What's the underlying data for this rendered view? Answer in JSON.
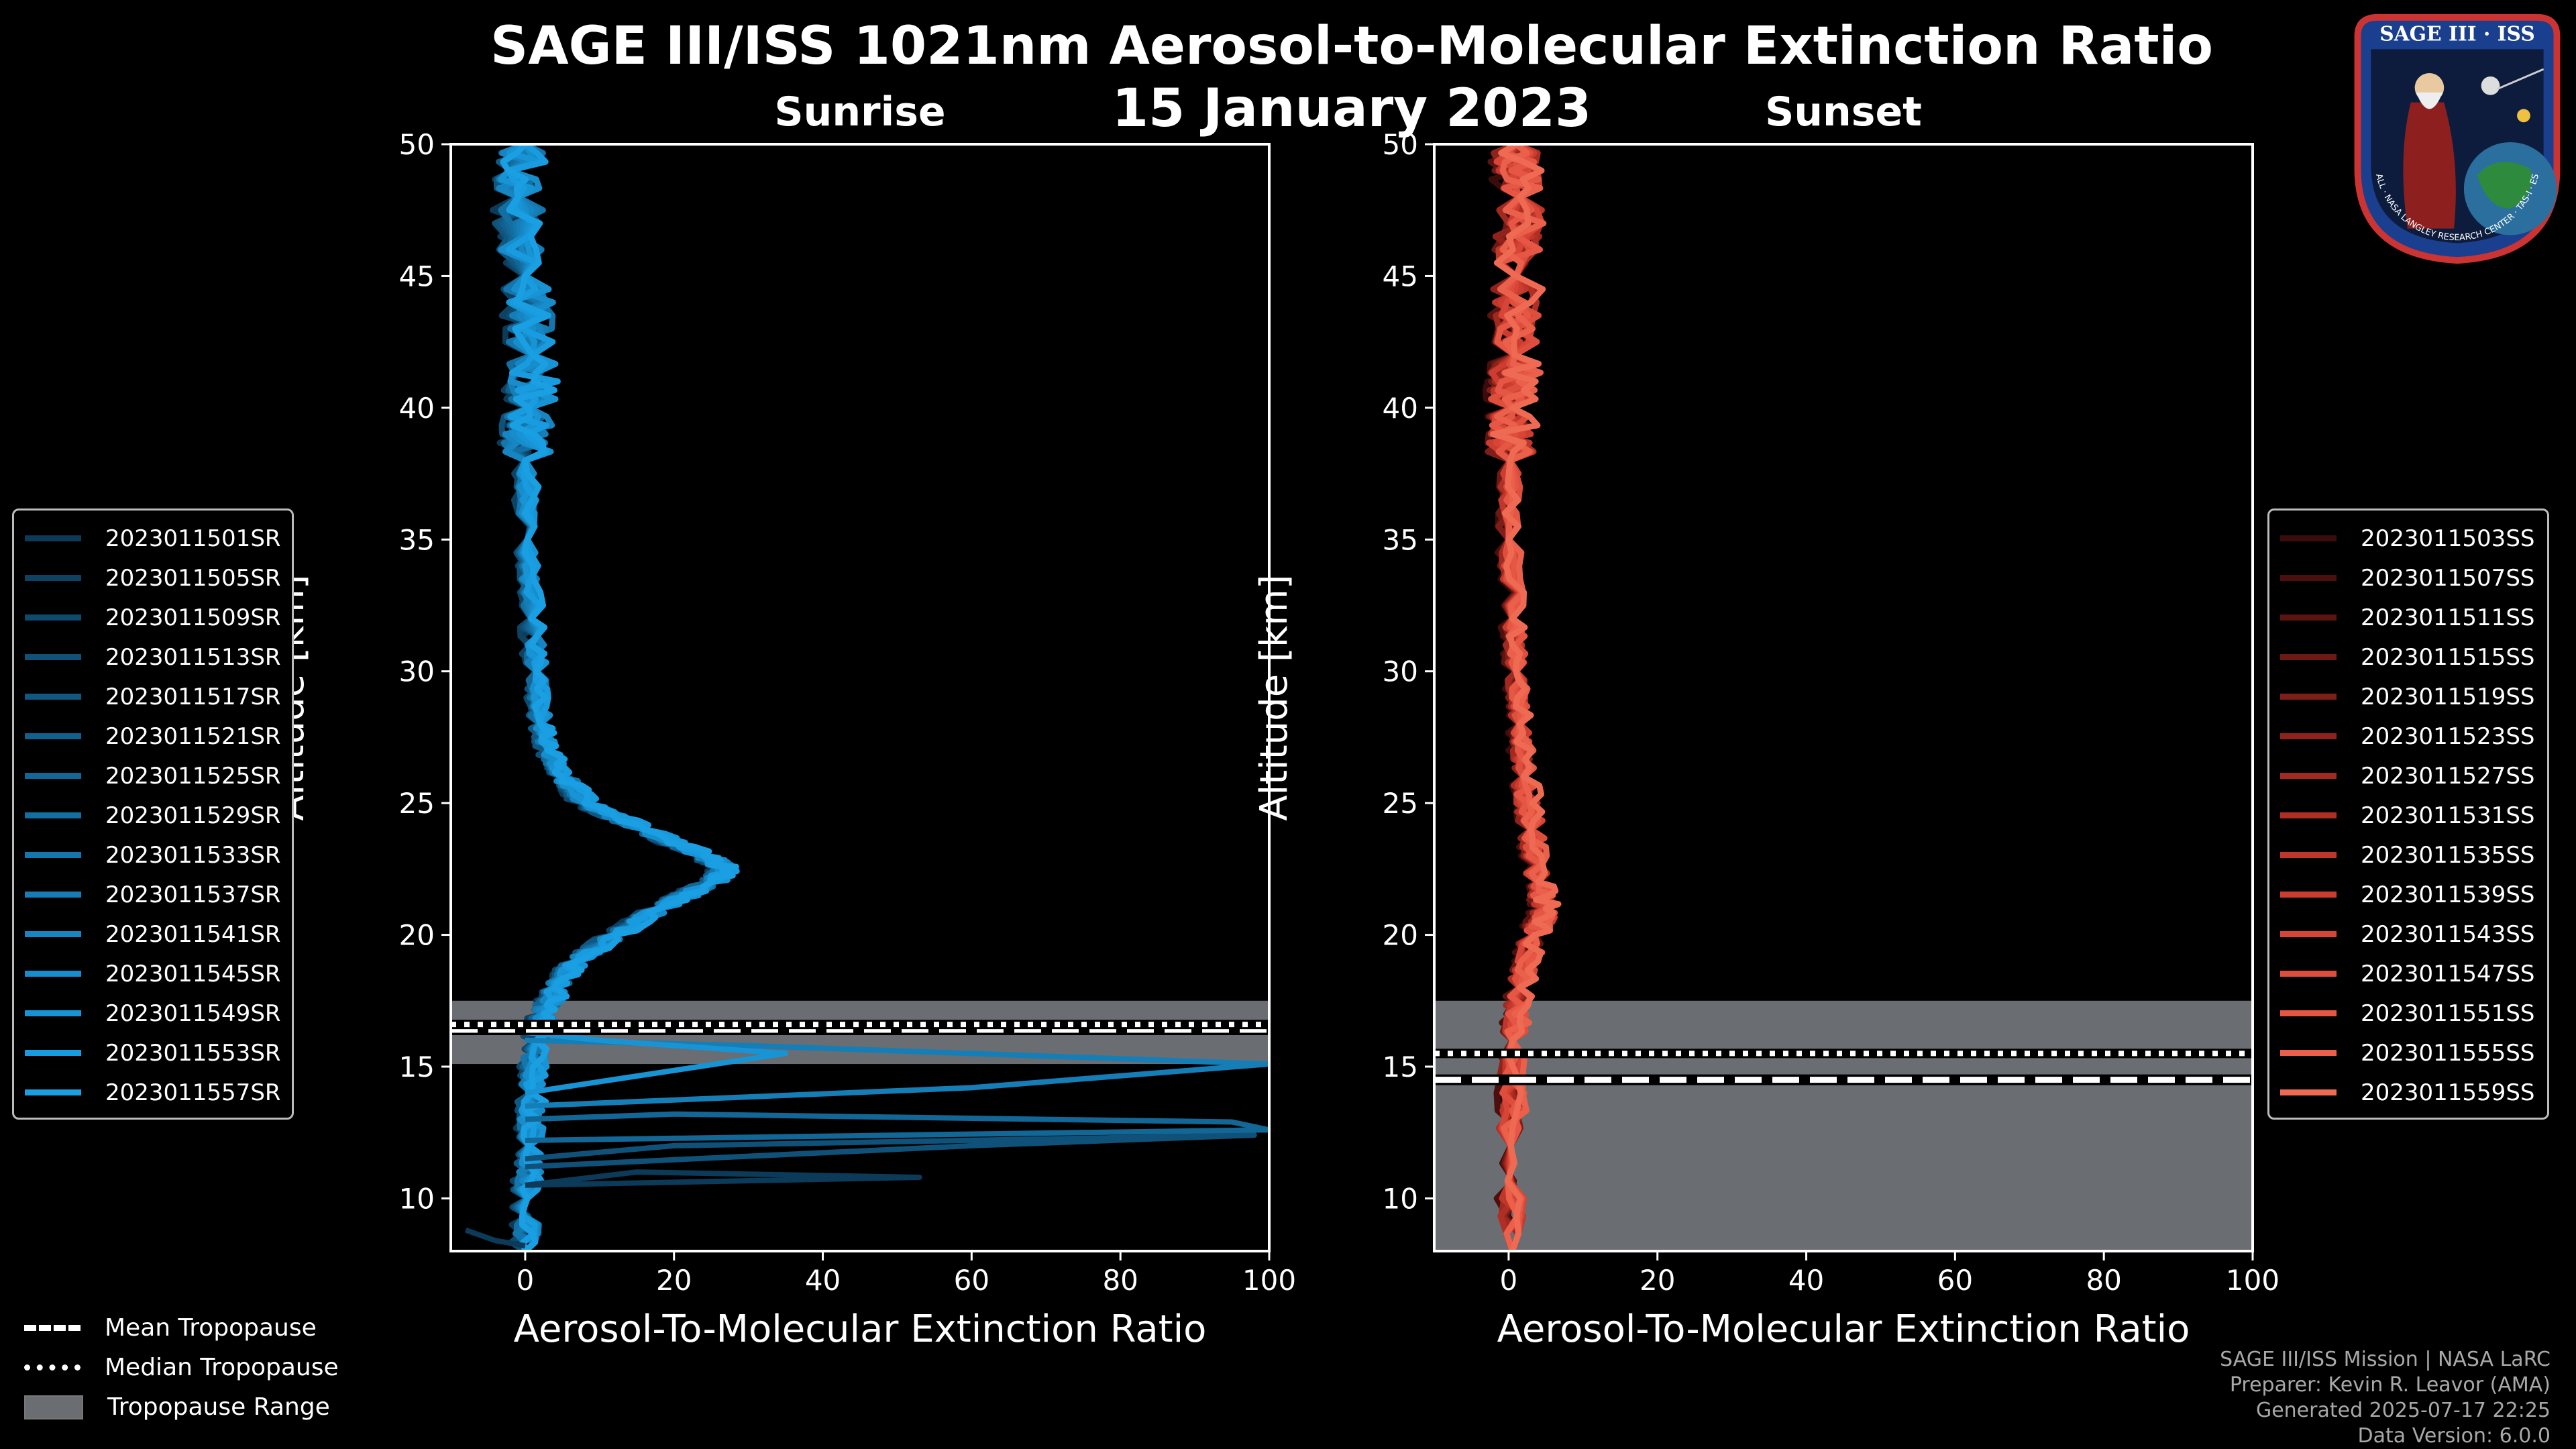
{
  "title": "SAGE III/ISS 1021nm Aerosol-to-Molecular Extinction Ratio",
  "date": "15 January 2023",
  "logo": {
    "line1": "SAGE III · ISS",
    "ring_text": "BALL · NASA LANGLEY RESEARCH CENTER · TAS-I · ESA"
  },
  "footer": {
    "line1": "SAGE III/ISS Mission | NASA LaRC",
    "line2": "Preparer: Kevin R. Leavor (AMA)",
    "line3": "Generated 2025-07-17 22:25",
    "line4": "Data Version: 6.0.0"
  },
  "tropopause_legend": {
    "mean": "Mean Tropopause",
    "median": "Median Tropopause",
    "range": "Tropopause Range"
  },
  "chart_data": [
    {
      "type": "line",
      "title": "Sunrise",
      "xlabel": "Aerosol-To-Molecular Extinction Ratio",
      "ylabel": "Altitude [km]",
      "xlim": [
        -10,
        100
      ],
      "ylim": [
        8,
        50
      ],
      "xticks": [
        0,
        20,
        40,
        60,
        80,
        100
      ],
      "yticks": [
        10,
        15,
        20,
        25,
        30,
        35,
        40,
        45,
        50
      ],
      "tropopause": {
        "mean": 16.4,
        "median": 16.6,
        "range": [
          15.1,
          17.5
        ]
      },
      "base_profile": [
        [
          0,
          8
        ],
        [
          0.3,
          10
        ],
        [
          0.5,
          12
        ],
        [
          0.8,
          14
        ],
        [
          1.5,
          16
        ],
        [
          2.5,
          17
        ],
        [
          4,
          18
        ],
        [
          7,
          19
        ],
        [
          12,
          20
        ],
        [
          18,
          21
        ],
        [
          25,
          22
        ],
        [
          27,
          22.5
        ],
        [
          24,
          23
        ],
        [
          16,
          24
        ],
        [
          8,
          25
        ],
        [
          5,
          26
        ],
        [
          3,
          27
        ],
        [
          2,
          28
        ],
        [
          1.5,
          30
        ],
        [
          0.8,
          32
        ],
        [
          0.3,
          35
        ],
        [
          0,
          38
        ],
        [
          0.5,
          40
        ],
        [
          1,
          42
        ],
        [
          0,
          45
        ],
        [
          -1,
          48
        ],
        [
          0,
          50
        ]
      ],
      "spike_profiles": [
        [
          [
            0,
            10.5
          ],
          [
            15,
            11
          ],
          [
            53,
            10.8
          ],
          [
            0,
            10.5
          ]
        ],
        [
          [
            0,
            11.5
          ],
          [
            20,
            12
          ],
          [
            98,
            12.4
          ],
          [
            60,
            12
          ],
          [
            0,
            11.2
          ]
        ],
        [
          [
            0,
            12.2
          ],
          [
            100,
            12.6
          ],
          [
            95,
            12.9
          ],
          [
            20,
            13.2
          ],
          [
            0,
            13
          ]
        ],
        [
          [
            0,
            13.5
          ],
          [
            60,
            14.2
          ],
          [
            100,
            15.1
          ],
          [
            30,
            15.8
          ],
          [
            0,
            16
          ]
        ],
        [
          [
            0,
            14
          ],
          [
            35,
            15.5
          ],
          [
            10,
            16
          ],
          [
            0,
            16.3
          ]
        ],
        [
          [
            -8,
            8.8
          ],
          [
            -4,
            8.4
          ],
          [
            0,
            8.2
          ]
        ]
      ],
      "series_names": [
        "2023011501SR",
        "2023011505SR",
        "2023011509SR",
        "2023011513SR",
        "2023011517SR",
        "2023011521SR",
        "2023011525SR",
        "2023011529SR",
        "2023011533SR",
        "2023011537SR",
        "2023011541SR",
        "2023011545SR",
        "2023011549SR",
        "2023011553SR",
        "2023011557SR"
      ],
      "series_colors": [
        "#0c3a59",
        "#0d4263",
        "#0e4a6e",
        "#0f5178",
        "#105882",
        "#11608d",
        "#126797",
        "#136fa2",
        "#1476ac",
        "#157eb7",
        "#1685c1",
        "#178dcb",
        "#1894d5",
        "#199bdf",
        "#1a9fe3"
      ],
      "legend_loc": "center-left"
    },
    {
      "type": "line",
      "title": "Sunset",
      "xlabel": "Aerosol-To-Molecular Extinction Ratio",
      "ylabel": "Altitude [km]",
      "xlim": [
        -10,
        100
      ],
      "ylim": [
        8,
        50
      ],
      "xticks": [
        0,
        20,
        40,
        60,
        80,
        100
      ],
      "yticks": [
        10,
        15,
        20,
        25,
        30,
        35,
        40,
        45,
        50
      ],
      "tropopause": {
        "mean": 14.5,
        "median": 15.5,
        "range": [
          8,
          17.5
        ]
      },
      "base_profile": [
        [
          0.5,
          8
        ],
        [
          0.3,
          12
        ],
        [
          0.5,
          16
        ],
        [
          1.5,
          18
        ],
        [
          3.5,
          20
        ],
        [
          5,
          21
        ],
        [
          4,
          22
        ],
        [
          3,
          24
        ],
        [
          2,
          26
        ],
        [
          1.5,
          28
        ],
        [
          1,
          30
        ],
        [
          0.5,
          32
        ],
        [
          0,
          35
        ],
        [
          0.2,
          38
        ],
        [
          0.5,
          40
        ],
        [
          0.8,
          42
        ],
        [
          1,
          45
        ],
        [
          1.5,
          48
        ],
        [
          1,
          50
        ]
      ],
      "spike_profiles": [],
      "series_names": [
        "2023011503SS",
        "2023011507SS",
        "2023011511SS",
        "2023011515SS",
        "2023011519SS",
        "2023011523SS",
        "2023011527SS",
        "2023011531SS",
        "2023011535SS",
        "2023011539SS",
        "2023011543SS",
        "2023011547SS",
        "2023011551SS",
        "2023011555SS",
        "2023011559SS"
      ],
      "series_colors": [
        "#3a0c0b",
        "#4b100e",
        "#5c1411",
        "#6d1914",
        "#7e1e18",
        "#8f231c",
        "#a02920",
        "#b02f25",
        "#bf362a",
        "#cc3d30",
        "#d74536",
        "#de4e3d",
        "#e55744",
        "#ea604b",
        "#ee6a53"
      ],
      "legend_loc": "center-right"
    }
  ]
}
